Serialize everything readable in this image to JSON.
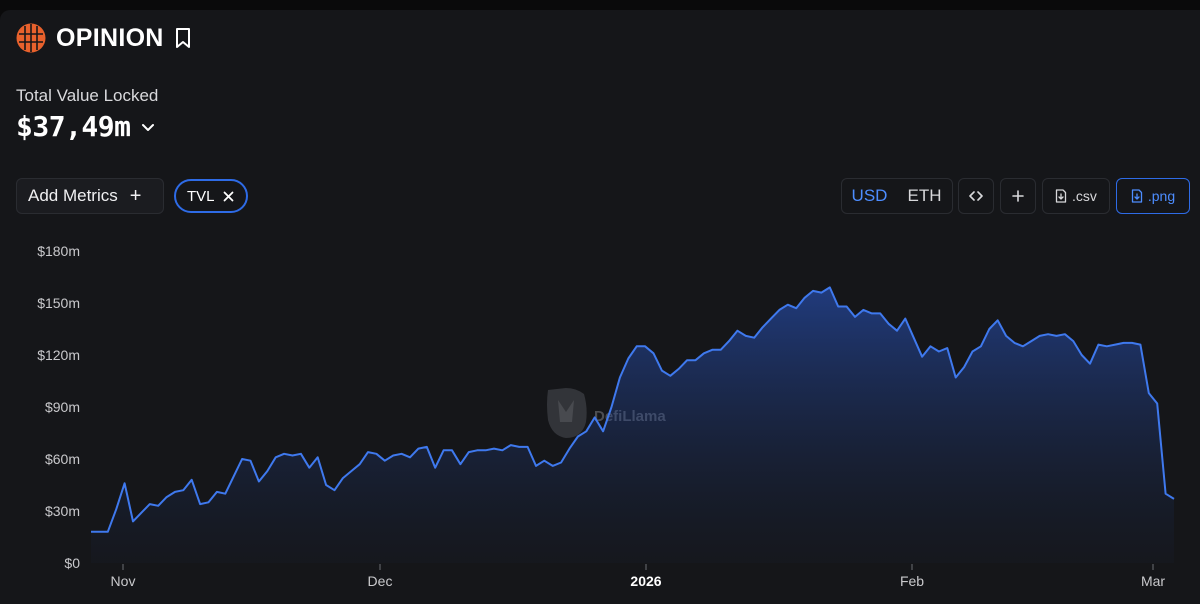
{
  "header": {
    "title": "OPINION",
    "tvl_label": "Total Value Locked",
    "tvl_value": "$37,49m"
  },
  "controls": {
    "add_metrics_label": "Add Metrics",
    "chip_label": "TVL",
    "currency_options": [
      "USD",
      "ETH"
    ],
    "selected_currency": "USD",
    "csv_label": ".csv",
    "png_label": ".png"
  },
  "watermark": "DefiLlama",
  "colors": {
    "accent": "#4d8dff",
    "line": "#3f79ee",
    "logo": "#e8612c"
  },
  "chart_data": {
    "type": "area",
    "series": [
      {
        "values": [
          18,
          18,
          18,
          31,
          46,
          24,
          29,
          34,
          33,
          38,
          41,
          42,
          48,
          34,
          35,
          41,
          40,
          50,
          60,
          59,
          47,
          53,
          61,
          63,
          62,
          63,
          55,
          61,
          45,
          42,
          49,
          53,
          57,
          64,
          63,
          59,
          62,
          63,
          61,
          66,
          67,
          55,
          65,
          65,
          57,
          64,
          65,
          65,
          66,
          65,
          68,
          67,
          67,
          56,
          59,
          56,
          58,
          66,
          73,
          76,
          84,
          76,
          90,
          107,
          118,
          125,
          125,
          121,
          111,
          108,
          112,
          117,
          117,
          121,
          123,
          123,
          128,
          134,
          131,
          130,
          136,
          141,
          146,
          149,
          147,
          153,
          157,
          156,
          159,
          148,
          148,
          142,
          146,
          144,
          144,
          138,
          134,
          141,
          130,
          119,
          125,
          122,
          124,
          107,
          113,
          122,
          125,
          135,
          140,
          131,
          127,
          125,
          128,
          131,
          132,
          131,
          132,
          128,
          120,
          115,
          126,
          125,
          126,
          127,
          127,
          126,
          98,
          92,
          40,
          37
        ]
      }
    ],
    "x_range": [
      "2025-10-25",
      "2026-03-03"
    ],
    "x_ticks": [
      "Nov",
      "Dec",
      "2026",
      "Feb",
      "Mar"
    ],
    "y_ticks": [
      "$0",
      "$30m",
      "$60m",
      "$90m",
      "$120m",
      "$150m",
      "$180m"
    ],
    "ylim": [
      0,
      180
    ],
    "grid": false,
    "unit": "$m"
  }
}
